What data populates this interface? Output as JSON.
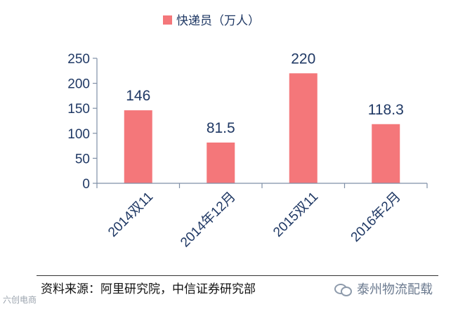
{
  "chart_data": {
    "type": "bar",
    "legend": {
      "label": "快递员（万人）",
      "position": "top-center",
      "color": "#f4777a"
    },
    "categories": [
      "2014双11",
      "2014年12月",
      "2015双11",
      "2016年2月"
    ],
    "series": [
      {
        "name": "快递员（万人）",
        "values": [
          146,
          81.5,
          220,
          118.3
        ],
        "color": "#f4777a"
      }
    ],
    "data_labels": [
      "146",
      "81.5",
      "220",
      "118.3"
    ],
    "ylim": [
      0,
      250
    ],
    "yticks": [
      0,
      50,
      100,
      150,
      200,
      250
    ],
    "grid": false
  },
  "source": "资料来源：阿里研究院，中信证券研究部",
  "brand": {
    "name": "泰州物流配载",
    "icon": "wechat-icon"
  },
  "watermark": "六创电商",
  "colors": {
    "bar": "#f4777a",
    "axis": "#7f8fa6",
    "text": "#1f3864"
  }
}
